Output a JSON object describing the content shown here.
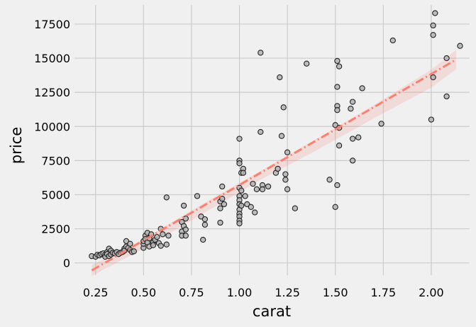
{
  "chart_data": {
    "type": "scatter",
    "xlabel": "carat",
    "ylabel": "price",
    "xlim": [
      0.14,
      2.2
    ],
    "ylim": [
      -900,
      18900
    ],
    "x_ticks": [
      0.25,
      0.5,
      0.75,
      1.0,
      1.25,
      1.5,
      1.75,
      2.0
    ],
    "x_tick_labels": [
      "0.25",
      "0.50",
      "0.75",
      "1.00",
      "1.25",
      "1.50",
      "1.75",
      "2.00"
    ],
    "y_ticks": [
      0,
      2500,
      5000,
      7500,
      10000,
      12500,
      15000,
      17500
    ],
    "y_tick_labels": [
      "0",
      "2500",
      "5000",
      "7500",
      "10000",
      "12500",
      "15000",
      "17500"
    ],
    "grid": true,
    "legend": "none",
    "points": [
      [
        0.23,
        500
      ],
      [
        0.25,
        450
      ],
      [
        0.26,
        600
      ],
      [
        0.27,
        550
      ],
      [
        0.28,
        650
      ],
      [
        0.29,
        700
      ],
      [
        0.3,
        600
      ],
      [
        0.3,
        450
      ],
      [
        0.31,
        800
      ],
      [
        0.31,
        650
      ],
      [
        0.32,
        1050
      ],
      [
        0.32,
        500
      ],
      [
        0.33,
        900
      ],
      [
        0.33,
        620
      ],
      [
        0.34,
        750
      ],
      [
        0.35,
        700
      ],
      [
        0.36,
        800
      ],
      [
        0.37,
        650
      ],
      [
        0.38,
        750
      ],
      [
        0.39,
        800
      ],
      [
        0.4,
        1050
      ],
      [
        0.4,
        900
      ],
      [
        0.41,
        1600
      ],
      [
        0.41,
        1200
      ],
      [
        0.42,
        1100
      ],
      [
        0.43,
        950
      ],
      [
        0.43,
        1400
      ],
      [
        0.44,
        800
      ],
      [
        0.45,
        850
      ],
      [
        0.5,
        1100
      ],
      [
        0.5,
        1400
      ],
      [
        0.5,
        1600
      ],
      [
        0.51,
        2000
      ],
      [
        0.51,
        1750
      ],
      [
        0.52,
        2200
      ],
      [
        0.52,
        1500
      ],
      [
        0.53,
        1200
      ],
      [
        0.53,
        1800
      ],
      [
        0.54,
        2100
      ],
      [
        0.55,
        1500
      ],
      [
        0.55,
        1300
      ],
      [
        0.56,
        1700
      ],
      [
        0.57,
        1900
      ],
      [
        0.58,
        1450
      ],
      [
        0.59,
        1250
      ],
      [
        0.59,
        2500
      ],
      [
        0.6,
        2100
      ],
      [
        0.62,
        1350
      ],
      [
        0.62,
        4800
      ],
      [
        0.63,
        2000
      ],
      [
        0.7,
        2300
      ],
      [
        0.7,
        2000
      ],
      [
        0.7,
        3000
      ],
      [
        0.71,
        2700
      ],
      [
        0.71,
        4200
      ],
      [
        0.72,
        2000
      ],
      [
        0.72,
        2450
      ],
      [
        0.72,
        3250
      ],
      [
        0.78,
        4900
      ],
      [
        0.8,
        3400
      ],
      [
        0.81,
        1700
      ],
      [
        0.82,
        3200
      ],
      [
        0.82,
        2800
      ],
      [
        0.9,
        2950
      ],
      [
        0.9,
        4000
      ],
      [
        0.9,
        4500
      ],
      [
        0.91,
        5600
      ],
      [
        0.91,
        4700
      ],
      [
        0.92,
        4300
      ],
      [
        1.0,
        9100
      ],
      [
        1.0,
        7500
      ],
      [
        1.0,
        7300
      ],
      [
        1.0,
        5500
      ],
      [
        1.0,
        4900
      ],
      [
        1.0,
        4600
      ],
      [
        1.0,
        4300
      ],
      [
        1.0,
        3900
      ],
      [
        1.0,
        3600
      ],
      [
        1.0,
        3400
      ],
      [
        1.0,
        3100
      ],
      [
        1.0,
        2900
      ],
      [
        1.01,
        6600
      ],
      [
        1.01,
        5300
      ],
      [
        1.01,
        4200
      ],
      [
        1.02,
        6900
      ],
      [
        1.02,
        6600
      ],
      [
        1.03,
        4900
      ],
      [
        1.04,
        4300
      ],
      [
        1.06,
        4100
      ],
      [
        1.07,
        5800
      ],
      [
        1.08,
        3700
      ],
      [
        1.09,
        5400
      ],
      [
        1.11,
        9600
      ],
      [
        1.11,
        15400
      ],
      [
        1.12,
        5700
      ],
      [
        1.12,
        5400
      ],
      [
        1.15,
        5600
      ],
      [
        1.19,
        6600
      ],
      [
        1.2,
        6900
      ],
      [
        1.21,
        13600
      ],
      [
        1.22,
        9300
      ],
      [
        1.23,
        11400
      ],
      [
        1.24,
        6100
      ],
      [
        1.24,
        6500
      ],
      [
        1.25,
        5400
      ],
      [
        1.25,
        8100
      ],
      [
        1.29,
        4000
      ],
      [
        1.35,
        14600
      ],
      [
        1.47,
        6100
      ],
      [
        1.5,
        4100
      ],
      [
        1.5,
        10100
      ],
      [
        1.51,
        14800
      ],
      [
        1.51,
        12900
      ],
      [
        1.51,
        11500
      ],
      [
        1.51,
        11200
      ],
      [
        1.51,
        5700
      ],
      [
        1.52,
        14400
      ],
      [
        1.52,
        8600
      ],
      [
        1.52,
        9900
      ],
      [
        1.58,
        11300
      ],
      [
        1.59,
        11800
      ],
      [
        1.59,
        7500
      ],
      [
        1.59,
        9100
      ],
      [
        1.62,
        9200
      ],
      [
        1.64,
        12800
      ],
      [
        1.74,
        10200
      ],
      [
        1.8,
        16300
      ],
      [
        2.0,
        10500
      ],
      [
        2.01,
        17400
      ],
      [
        2.01,
        16700
      ],
      [
        2.01,
        13600
      ],
      [
        2.02,
        18300
      ],
      [
        2.08,
        12200
      ],
      [
        2.08,
        15000
      ],
      [
        2.15,
        15900
      ]
    ],
    "regression": {
      "x_start": 0.23,
      "x_end": 2.13,
      "y_start": -550,
      "y_end": 14900
    },
    "confidence_band": {
      "x": [
        0.23,
        0.5,
        0.8,
        1.1,
        1.4,
        1.7,
        2.0,
        2.13
      ],
      "upper": [
        -150,
        1750,
        4260,
        6660,
        9080,
        11550,
        14160,
        15600
      ],
      "lower": [
        -950,
        1050,
        3540,
        6010,
        8240,
        10590,
        12840,
        14200
      ]
    },
    "colors": {
      "background": "#f0f0f0",
      "grid": "#cbcbcb",
      "point_fill": "#b3b3b3",
      "point_edge": "#222222",
      "regression_line": "#fa8072",
      "band": "#fa8072"
    }
  }
}
